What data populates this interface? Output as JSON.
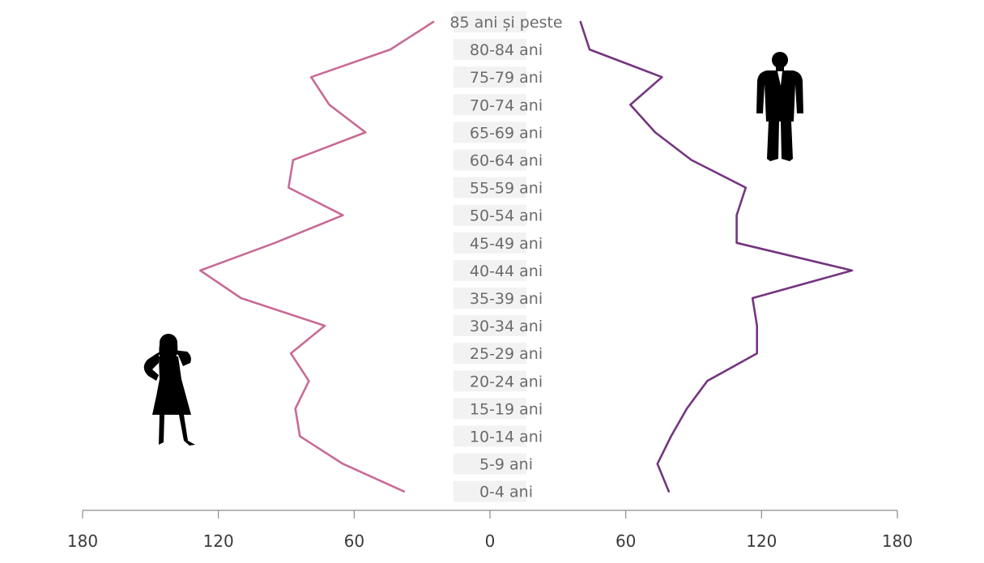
{
  "chart_data": {
    "type": "line",
    "title": "",
    "xlabel": "",
    "ylabel": "",
    "categories": [
      "0-4 ani",
      "5-9 ani",
      "10-14 ani",
      "15-19 ani",
      "20-24 ani",
      "25-29 ani",
      "30-34 ani",
      "35-39 ani",
      "40-44 ani",
      "45-49 ani",
      "50-54 ani",
      "55-59 ani",
      "60-64 ani",
      "65-69 ani",
      "70-74 ani",
      "75-79 ani",
      "80-84 ani",
      "85 ani și peste"
    ],
    "series": [
      {
        "side": "left",
        "color": "#c86b96",
        "icon": "woman-silhouette-icon",
        "values": [
          38,
          65,
          84,
          86,
          80,
          88,
          73,
          110,
          128,
          95,
          65,
          89,
          87,
          55,
          71,
          79,
          44,
          25
        ]
      },
      {
        "side": "right",
        "color": "#74357f",
        "icon": "man-silhouette-icon",
        "values": [
          79,
          74,
          80,
          87,
          96,
          118,
          118,
          116,
          160,
          109,
          109,
          113,
          89,
          73,
          62,
          76,
          44,
          40
        ]
      }
    ],
    "xlim": [
      -180,
      180
    ],
    "x_ticks": [
      {
        "value": -180,
        "label": "180"
      },
      {
        "value": -120,
        "label": "120"
      },
      {
        "value": -60,
        "label": "60"
      },
      {
        "value": 0,
        "label": "0"
      },
      {
        "value": 60,
        "label": "60"
      },
      {
        "value": 120,
        "label": "120"
      },
      {
        "value": 180,
        "label": "180"
      }
    ],
    "grid": false,
    "legend": "none"
  }
}
